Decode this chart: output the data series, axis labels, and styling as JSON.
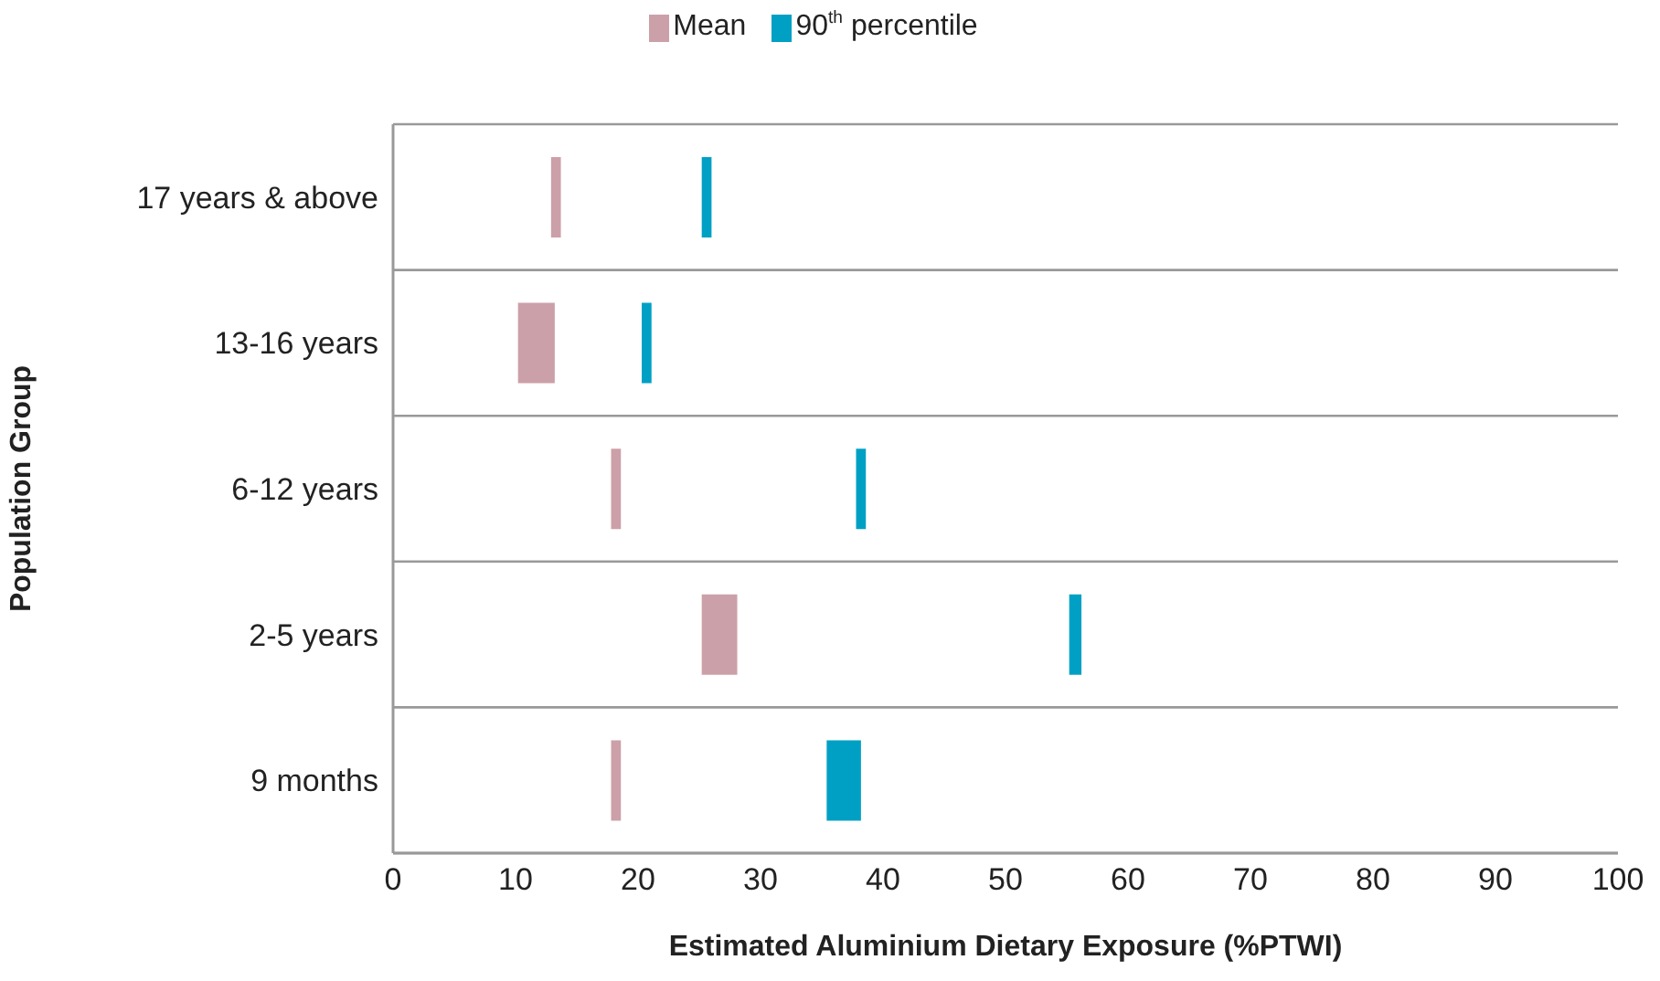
{
  "chart_data": {
    "type": "bar",
    "orientation": "horizontal",
    "xlabel": "Estimated Aluminium Dietary Exposure (%PTWI)",
    "ylabel": "Population Group",
    "categories": [
      "17 years & above",
      "13-16 years",
      "6-12 years",
      "2-5 years",
      "9 months"
    ],
    "series": [
      {
        "name": "Mean",
        "color": "#cca0a8",
        "base": [
          12.9,
          10.2,
          17.8,
          25.2,
          17.8
        ],
        "values": [
          0.8,
          3,
          0.8,
          2.9,
          0.8
        ]
      },
      {
        "name": "90$^{th}$ percentile",
        "color": "#00a0c4",
        "base": [
          25.2,
          20.3,
          37.8,
          55.2,
          35.4
        ],
        "values": [
          0.8,
          0.8,
          0.8,
          1,
          2.8
        ]
      }
    ],
    "xlim": [
      0,
      100
    ],
    "xticks": [
      0,
      10,
      20,
      30,
      40,
      50,
      60,
      70,
      80,
      90,
      100
    ],
    "grid": "y",
    "legend": "top"
  }
}
